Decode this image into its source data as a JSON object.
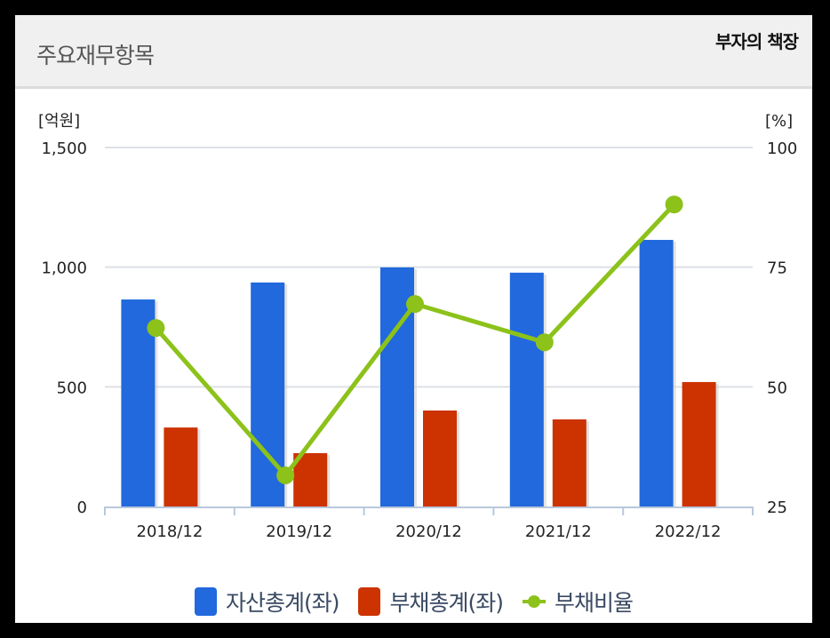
{
  "header": {
    "title": "주요재무항목",
    "brand": "부자의 책장"
  },
  "axes": {
    "left_unit": "[억원]",
    "right_unit": "[%]",
    "left_ticks": [
      "1,500",
      "1,000",
      "500",
      "0"
    ],
    "right_ticks": [
      "100",
      "75",
      "50",
      "25"
    ]
  },
  "legend": {
    "items": [
      {
        "label": "자산총계(좌)",
        "color": "#2169dd",
        "type": "bar"
      },
      {
        "label": "부채총계(좌)",
        "color": "#cc3300",
        "type": "bar"
      },
      {
        "label": "부채비율",
        "color": "#8cc21a",
        "type": "line"
      }
    ]
  },
  "chart_data": {
    "type": "bar",
    "title": "주요재무항목",
    "categories": [
      "2018/12",
      "2019/12",
      "2020/12",
      "2021/12",
      "2022/12"
    ],
    "series": [
      {
        "name": "자산총계(좌)",
        "type": "bar",
        "axis": "left",
        "color": "#2169dd",
        "values": [
          865,
          936,
          999,
          977,
          1114
        ]
      },
      {
        "name": "부채총계(좌)",
        "type": "bar",
        "axis": "left",
        "color": "#cc3300",
        "values": [
          330,
          223,
          401,
          364,
          520
        ]
      },
      {
        "name": "부채비율",
        "type": "line",
        "axis": "right",
        "color": "#8cc21a",
        "values": [
          62.3,
          31.5,
          67.3,
          59.3,
          88.1
        ]
      }
    ],
    "xlabel": "",
    "ylabel": "[억원]",
    "y2label": "[%]",
    "ylim": [
      0,
      1500
    ],
    "y2lim": [
      25,
      100
    ],
    "yticks": [
      0,
      500,
      1000,
      1500
    ],
    "y2ticks": [
      25,
      50,
      75,
      100
    ],
    "grid": true,
    "legend_position": "bottom"
  }
}
